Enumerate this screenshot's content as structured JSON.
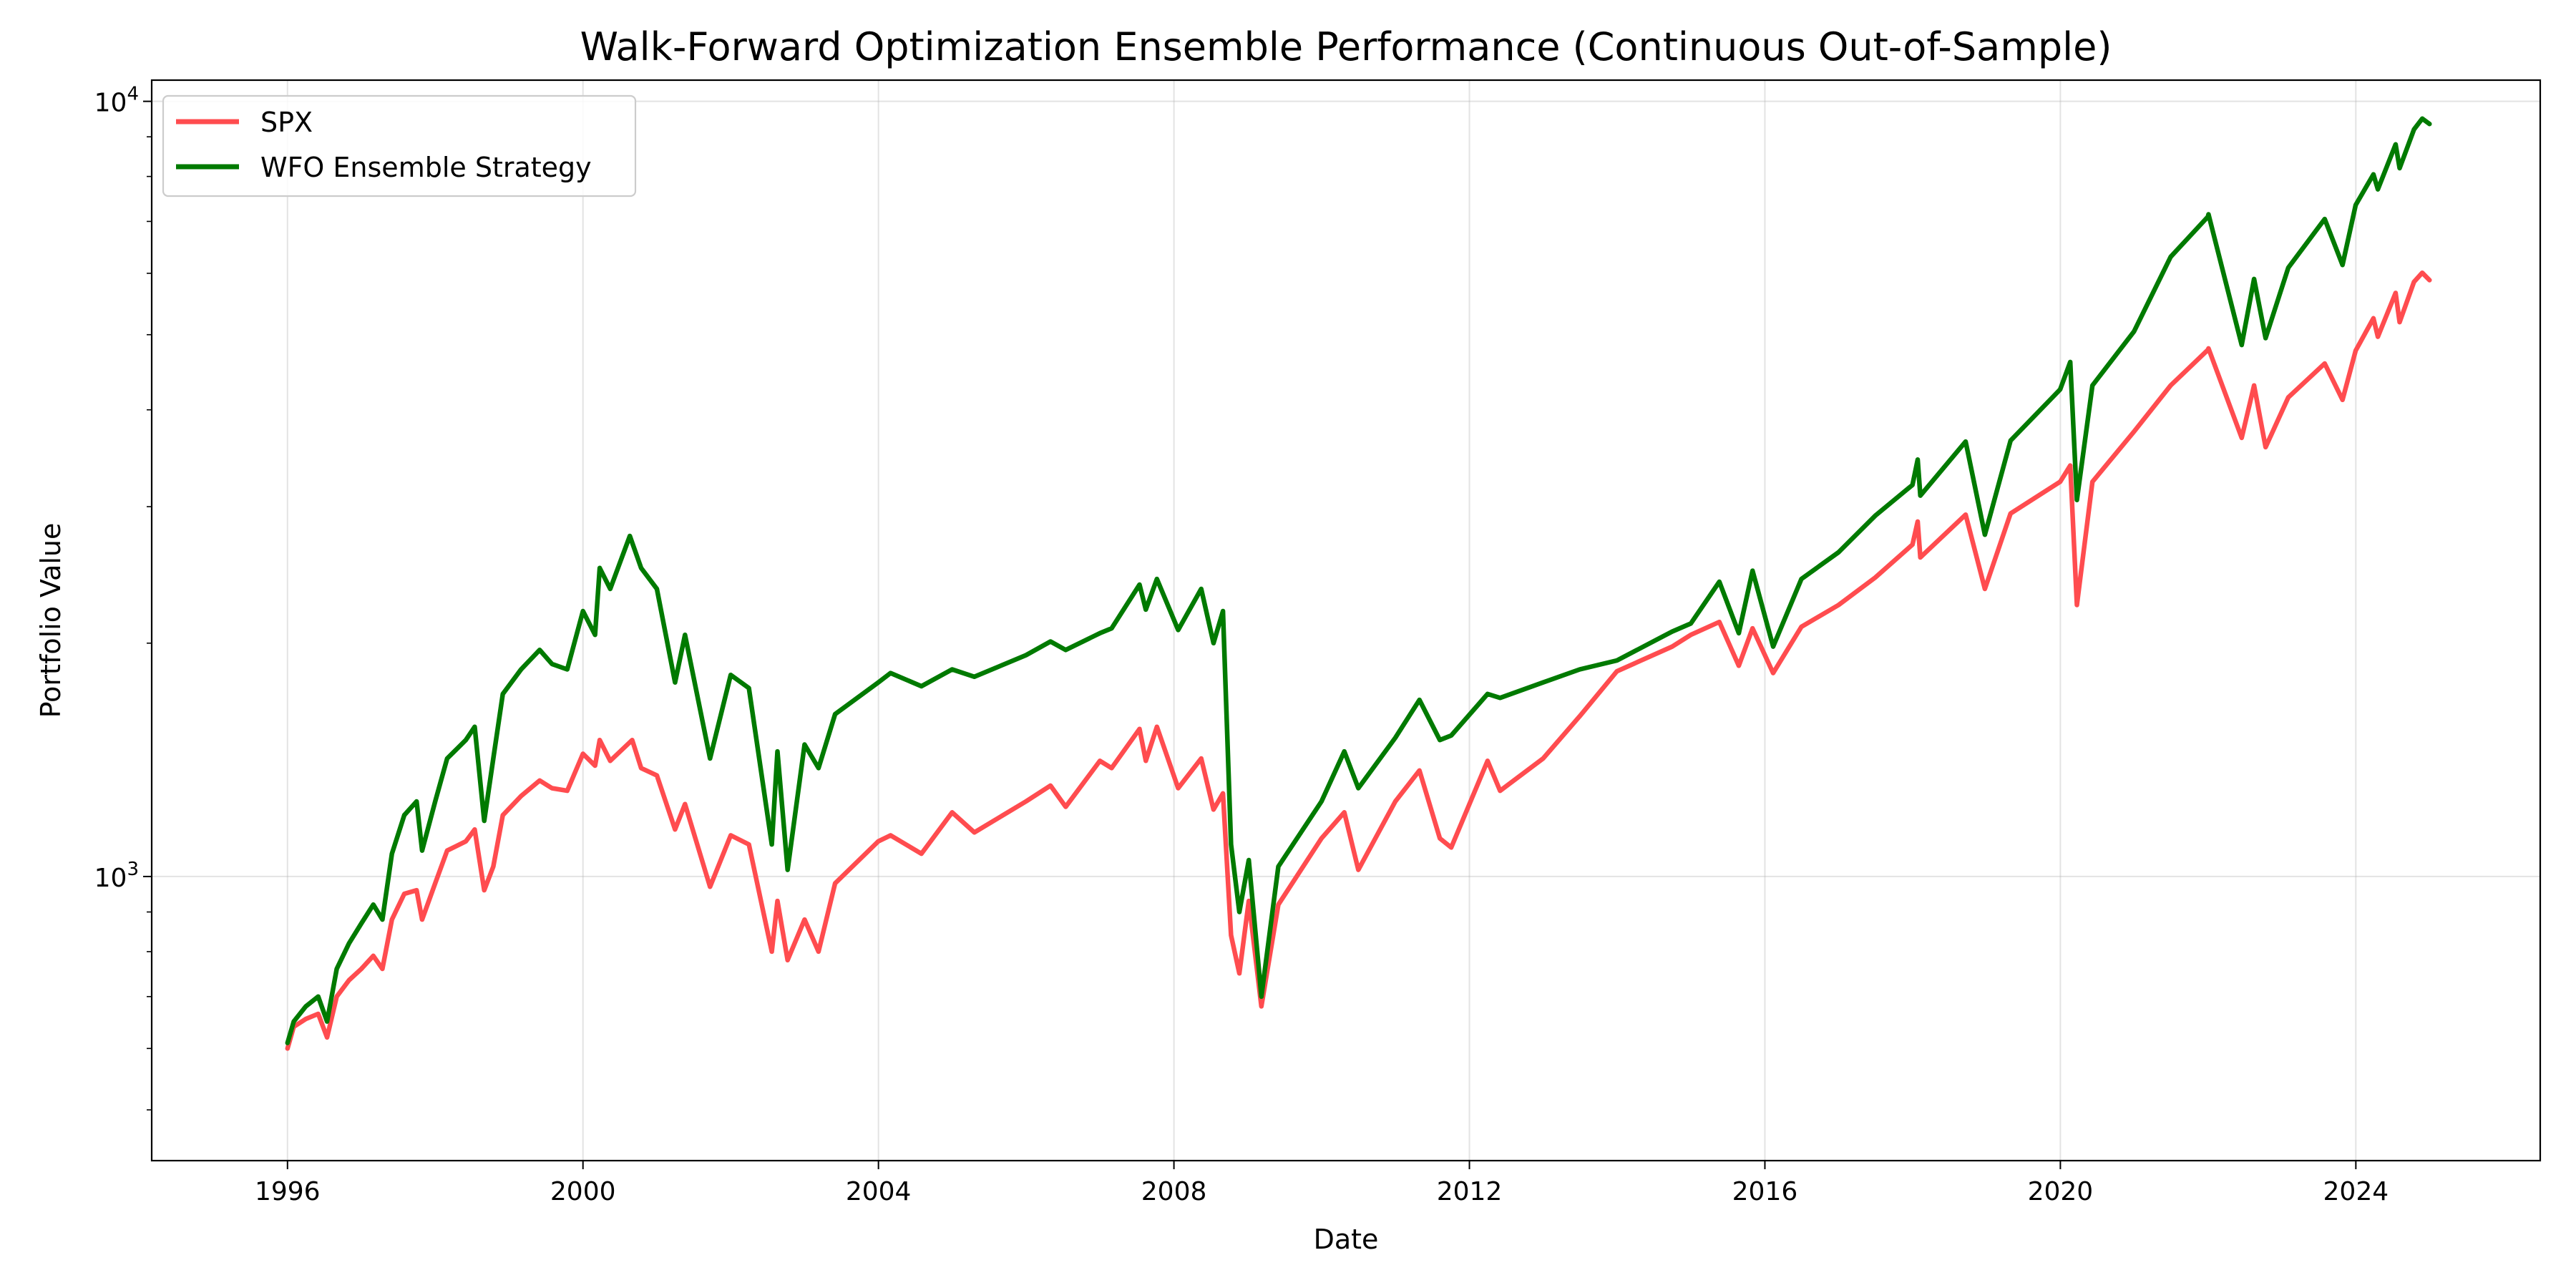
{
  "chart_data": {
    "type": "line",
    "title": "Walk-Forward Optimization Ensemble Performance (Continuous Out-of-Sample)",
    "xlabel": "Date",
    "ylabel": "Portfolio Value",
    "x_scale": "time",
    "y_scale": "log",
    "xlim": [
      "1994-03-01",
      "2026-07-01"
    ],
    "ylim": [
      430,
      10650
    ],
    "x_ticks": [
      "1996",
      "2000",
      "2004",
      "2008",
      "2012",
      "2016",
      "2020",
      "2024"
    ],
    "y_ticks": [
      {
        "base": "10",
        "exp": "3",
        "value": 1000
      },
      {
        "base": "10",
        "exp": "4",
        "value": 10000
      }
    ],
    "grid": true,
    "legend": "top-left",
    "series": [
      {
        "name": "SPX",
        "color": "#ff4c4f",
        "points": [
          [
            "1996-01-01",
            600
          ],
          [
            "1996-02-01",
            640
          ],
          [
            "1996-04-01",
            655
          ],
          [
            "1996-06-01",
            665
          ],
          [
            "1996-07-15",
            620
          ],
          [
            "1996-09-01",
            700
          ],
          [
            "1996-11-01",
            735
          ],
          [
            "1997-01-01",
            760
          ],
          [
            "1997-03-01",
            790
          ],
          [
            "1997-04-15",
            760
          ],
          [
            "1997-06-01",
            880
          ],
          [
            "1997-08-01",
            950
          ],
          [
            "1997-10-01",
            960
          ],
          [
            "1997-10-28",
            880
          ],
          [
            "1998-01-01",
            980
          ],
          [
            "1998-03-01",
            1080
          ],
          [
            "1998-06-01",
            1110
          ],
          [
            "1998-07-15",
            1150
          ],
          [
            "1998-08-31",
            960
          ],
          [
            "1998-10-15",
            1030
          ],
          [
            "1998-12-01",
            1200
          ],
          [
            "1999-03-01",
            1270
          ],
          [
            "1999-06-01",
            1330
          ],
          [
            "1999-08-01",
            1300
          ],
          [
            "1999-10-15",
            1290
          ],
          [
            "2000-01-01",
            1440
          ],
          [
            "2000-03-01",
            1390
          ],
          [
            "2000-03-24",
            1500
          ],
          [
            "2000-05-15",
            1410
          ],
          [
            "2000-09-01",
            1500
          ],
          [
            "2000-10-15",
            1380
          ],
          [
            "2001-01-01",
            1350
          ],
          [
            "2001-04-01",
            1150
          ],
          [
            "2001-05-20",
            1240
          ],
          [
            "2001-09-21",
            970
          ],
          [
            "2002-01-01",
            1130
          ],
          [
            "2002-04-01",
            1100
          ],
          [
            "2002-07-23",
            800
          ],
          [
            "2002-08-20",
            930
          ],
          [
            "2002-10-09",
            780
          ],
          [
            "2003-01-01",
            880
          ],
          [
            "2003-03-11",
            800
          ],
          [
            "2003-06-01",
            980
          ],
          [
            "2003-12-31",
            1110
          ],
          [
            "2004-03-01",
            1130
          ],
          [
            "2004-08-01",
            1070
          ],
          [
            "2004-12-31",
            1210
          ],
          [
            "2005-04-20",
            1140
          ],
          [
            "2005-12-31",
            1250
          ],
          [
            "2006-05-01",
            1310
          ],
          [
            "2006-07-15",
            1230
          ],
          [
            "2006-12-31",
            1410
          ],
          [
            "2007-02-27",
            1380
          ],
          [
            "2007-07-15",
            1550
          ],
          [
            "2007-08-15",
            1410
          ],
          [
            "2007-10-09",
            1560
          ],
          [
            "2008-01-22",
            1300
          ],
          [
            "2008-05-15",
            1420
          ],
          [
            "2008-07-15",
            1220
          ],
          [
            "2008-08-31",
            1280
          ],
          [
            "2008-10-10",
            840
          ],
          [
            "2008-11-20",
            750
          ],
          [
            "2009-01-06",
            930
          ],
          [
            "2009-03-09",
            680
          ],
          [
            "2009-06-01",
            920
          ],
          [
            "2009-12-31",
            1120
          ],
          [
            "2010-04-23",
            1210
          ],
          [
            "2010-07-01",
            1020
          ],
          [
            "2010-12-31",
            1250
          ],
          [
            "2011-04-29",
            1370
          ],
          [
            "2011-08-08",
            1120
          ],
          [
            "2011-10-03",
            1090
          ],
          [
            "2012-03-31",
            1410
          ],
          [
            "2012-06-01",
            1290
          ],
          [
            "2012-12-31",
            1420
          ],
          [
            "2013-06-30",
            1610
          ],
          [
            "2013-12-31",
            1840
          ],
          [
            "2014-09-30",
            1980
          ],
          [
            "2014-12-31",
            2050
          ],
          [
            "2015-05-21",
            2130
          ],
          [
            "2015-08-25",
            1870
          ],
          [
            "2015-11-01",
            2090
          ],
          [
            "2016-02-11",
            1830
          ],
          [
            "2016-06-30",
            2100
          ],
          [
            "2016-12-31",
            2240
          ],
          [
            "2017-06-30",
            2430
          ],
          [
            "2017-12-31",
            2680
          ],
          [
            "2018-01-26",
            2870
          ],
          [
            "2018-02-08",
            2580
          ],
          [
            "2018-09-20",
            2930
          ],
          [
            "2018-12-24",
            2350
          ],
          [
            "2019-04-30",
            2940
          ],
          [
            "2019-12-31",
            3230
          ],
          [
            "2020-02-19",
            3390
          ],
          [
            "2020-03-23",
            2240
          ],
          [
            "2020-06-08",
            3230
          ],
          [
            "2020-12-31",
            3750
          ],
          [
            "2021-06-30",
            4300
          ],
          [
            "2021-12-31",
            4780
          ],
          [
            "2022-01-03",
            4800
          ],
          [
            "2022-06-16",
            3680
          ],
          [
            "2022-08-16",
            4300
          ],
          [
            "2022-10-12",
            3580
          ],
          [
            "2023-02-01",
            4150
          ],
          [
            "2023-07-31",
            4590
          ],
          [
            "2023-10-27",
            4120
          ],
          [
            "2023-12-31",
            4770
          ],
          [
            "2024-03-28",
            5250
          ],
          [
            "2024-04-19",
            4970
          ],
          [
            "2024-07-16",
            5660
          ],
          [
            "2024-08-05",
            5190
          ],
          [
            "2024-10-15",
            5850
          ],
          [
            "2024-11-25",
            6010
          ],
          [
            "2024-12-31",
            5880
          ]
        ]
      },
      {
        "name": "WFO Ensemble Strategy",
        "color": "#007a00",
        "points": [
          [
            "1996-01-01",
            610
          ],
          [
            "1996-02-01",
            650
          ],
          [
            "1996-04-01",
            680
          ],
          [
            "1996-06-01",
            700
          ],
          [
            "1996-07-15",
            650
          ],
          [
            "1996-09-01",
            760
          ],
          [
            "1996-11-01",
            820
          ],
          [
            "1997-01-01",
            870
          ],
          [
            "1997-03-01",
            920
          ],
          [
            "1997-04-15",
            880
          ],
          [
            "1997-06-01",
            1070
          ],
          [
            "1997-08-01",
            1200
          ],
          [
            "1997-10-01",
            1250
          ],
          [
            "1997-10-28",
            1080
          ],
          [
            "1998-01-01",
            1250
          ],
          [
            "1998-03-01",
            1420
          ],
          [
            "1998-06-01",
            1500
          ],
          [
            "1998-07-15",
            1560
          ],
          [
            "1998-08-31",
            1180
          ],
          [
            "1998-10-15",
            1420
          ],
          [
            "1998-12-01",
            1720
          ],
          [
            "1999-03-01",
            1850
          ],
          [
            "1999-06-01",
            1960
          ],
          [
            "1999-08-01",
            1880
          ],
          [
            "1999-10-15",
            1850
          ],
          [
            "2000-01-01",
            2200
          ],
          [
            "2000-03-01",
            2050
          ],
          [
            "2000-03-24",
            2500
          ],
          [
            "2000-05-15",
            2350
          ],
          [
            "2000-08-20",
            2750
          ],
          [
            "2000-10-15",
            2500
          ],
          [
            "2001-01-01",
            2350
          ],
          [
            "2001-04-01",
            1780
          ],
          [
            "2001-05-20",
            2050
          ],
          [
            "2001-09-21",
            1420
          ],
          [
            "2002-01-01",
            1820
          ],
          [
            "2002-04-01",
            1750
          ],
          [
            "2002-07-23",
            1100
          ],
          [
            "2002-08-20",
            1450
          ],
          [
            "2002-10-09",
            1020
          ],
          [
            "2003-01-01",
            1480
          ],
          [
            "2003-03-11",
            1380
          ],
          [
            "2003-06-01",
            1620
          ],
          [
            "2003-12-31",
            1780
          ],
          [
            "2004-03-01",
            1830
          ],
          [
            "2004-08-01",
            1760
          ],
          [
            "2004-12-31",
            1850
          ],
          [
            "2005-04-20",
            1810
          ],
          [
            "2005-12-31",
            1930
          ],
          [
            "2006-05-01",
            2010
          ],
          [
            "2006-07-15",
            1960
          ],
          [
            "2006-12-31",
            2060
          ],
          [
            "2007-02-27",
            2090
          ],
          [
            "2007-07-15",
            2380
          ],
          [
            "2007-08-15",
            2210
          ],
          [
            "2007-10-09",
            2420
          ],
          [
            "2008-01-22",
            2080
          ],
          [
            "2008-05-15",
            2350
          ],
          [
            "2008-07-15",
            2000
          ],
          [
            "2008-08-31",
            2200
          ],
          [
            "2008-10-10",
            1100
          ],
          [
            "2008-11-20",
            900
          ],
          [
            "2009-01-06",
            1050
          ],
          [
            "2009-03-09",
            700
          ],
          [
            "2009-06-01",
            1030
          ],
          [
            "2009-12-31",
            1250
          ],
          [
            "2010-04-23",
            1450
          ],
          [
            "2010-07-01",
            1300
          ],
          [
            "2010-12-31",
            1510
          ],
          [
            "2011-04-29",
            1690
          ],
          [
            "2011-08-08",
            1500
          ],
          [
            "2011-10-03",
            1520
          ],
          [
            "2012-03-31",
            1720
          ],
          [
            "2012-06-01",
            1700
          ],
          [
            "2012-12-31",
            1780
          ],
          [
            "2013-06-30",
            1850
          ],
          [
            "2013-12-31",
            1900
          ],
          [
            "2014-09-30",
            2070
          ],
          [
            "2014-12-31",
            2120
          ],
          [
            "2015-05-21",
            2400
          ],
          [
            "2015-08-25",
            2060
          ],
          [
            "2015-11-01",
            2480
          ],
          [
            "2016-02-11",
            1980
          ],
          [
            "2016-06-30",
            2420
          ],
          [
            "2016-12-31",
            2620
          ],
          [
            "2017-06-30",
            2920
          ],
          [
            "2017-12-31",
            3200
          ],
          [
            "2018-01-26",
            3450
          ],
          [
            "2018-02-08",
            3100
          ],
          [
            "2018-09-20",
            3640
          ],
          [
            "2018-12-24",
            2760
          ],
          [
            "2019-04-30",
            3650
          ],
          [
            "2019-12-31",
            4250
          ],
          [
            "2020-02-19",
            4610
          ],
          [
            "2020-03-23",
            3060
          ],
          [
            "2020-06-08",
            4300
          ],
          [
            "2020-12-31",
            5050
          ],
          [
            "2021-06-30",
            6300
          ],
          [
            "2021-12-31",
            7100
          ],
          [
            "2022-01-03",
            7150
          ],
          [
            "2022-06-16",
            4850
          ],
          [
            "2022-08-16",
            5900
          ],
          [
            "2022-10-12",
            4950
          ],
          [
            "2023-02-01",
            6100
          ],
          [
            "2023-07-31",
            7050
          ],
          [
            "2023-10-27",
            6150
          ],
          [
            "2023-12-31",
            7350
          ],
          [
            "2024-03-28",
            8050
          ],
          [
            "2024-04-19",
            7700
          ],
          [
            "2024-07-16",
            8800
          ],
          [
            "2024-08-05",
            8200
          ],
          [
            "2024-10-15",
            9200
          ],
          [
            "2024-11-25",
            9500
          ],
          [
            "2024-12-31",
            9350
          ]
        ]
      }
    ]
  }
}
